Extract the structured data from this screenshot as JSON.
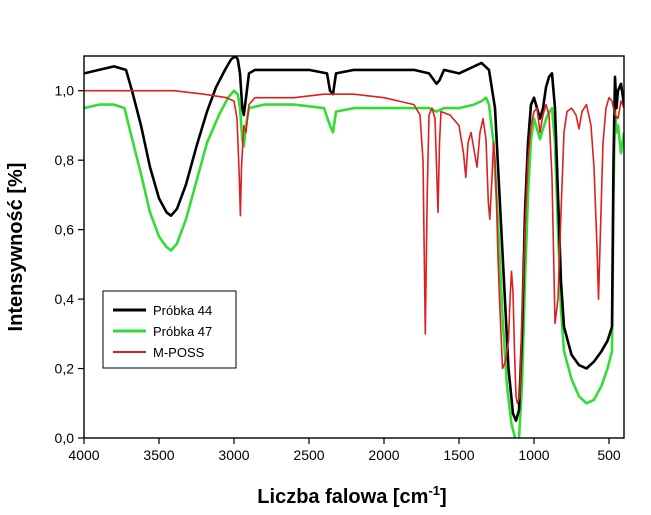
{
  "chart_data": {
    "type": "line",
    "xlabel_main": "Liczba falowa [cm",
    "xlabel_sup": "-1",
    "xlabel_end": "]",
    "ylabel": "Intensywność [%]",
    "xlim": [
      4000,
      400
    ],
    "ylim": [
      0.0,
      1.1
    ],
    "x_reversed": true,
    "x_ticks": [
      4000,
      3500,
      3000,
      2500,
      2000,
      1500,
      1000,
      500
    ],
    "x_tick_labels": [
      "4000",
      "3500",
      "3000",
      "2500",
      "2000",
      "1500",
      "1000",
      "500"
    ],
    "y_ticks": [
      0.0,
      0.2,
      0.4,
      0.6,
      0.8,
      1.0
    ],
    "y_tick_labels": [
      "0,0",
      "0,2",
      "0,4",
      "0,6",
      "0,8",
      "1,0"
    ],
    "grid": false,
    "legend_position": "lower-left",
    "series": [
      {
        "name": "Próbka 44",
        "color": "#000000",
        "points": [
          [
            4000,
            1.05
          ],
          [
            3900,
            1.06
          ],
          [
            3800,
            1.07
          ],
          [
            3720,
            1.06
          ],
          [
            3680,
            1.0
          ],
          [
            3620,
            0.9
          ],
          [
            3560,
            0.78
          ],
          [
            3500,
            0.69
          ],
          [
            3450,
            0.65
          ],
          [
            3420,
            0.64
          ],
          [
            3380,
            0.66
          ],
          [
            3320,
            0.73
          ],
          [
            3250,
            0.84
          ],
          [
            3180,
            0.94
          ],
          [
            3120,
            1.01
          ],
          [
            3060,
            1.06
          ],
          [
            3020,
            1.09
          ],
          [
            2990,
            1.1
          ],
          [
            2975,
            1.09
          ],
          [
            2960,
            1.05
          ],
          [
            2945,
            0.95
          ],
          [
            2935,
            0.93
          ],
          [
            2920,
            0.98
          ],
          [
            2900,
            1.05
          ],
          [
            2860,
            1.06
          ],
          [
            2700,
            1.06
          ],
          [
            2500,
            1.06
          ],
          [
            2380,
            1.05
          ],
          [
            2360,
            1.0
          ],
          [
            2340,
            0.99
          ],
          [
            2320,
            1.05
          ],
          [
            2200,
            1.06
          ],
          [
            2000,
            1.06
          ],
          [
            1800,
            1.06
          ],
          [
            1700,
            1.05
          ],
          [
            1650,
            1.02
          ],
          [
            1630,
            1.03
          ],
          [
            1600,
            1.06
          ],
          [
            1500,
            1.05
          ],
          [
            1450,
            1.06
          ],
          [
            1400,
            1.07
          ],
          [
            1350,
            1.08
          ],
          [
            1300,
            1.06
          ],
          [
            1260,
            0.95
          ],
          [
            1230,
            0.7
          ],
          [
            1200,
            0.45
          ],
          [
            1170,
            0.2
          ],
          [
            1140,
            0.07
          ],
          [
            1120,
            0.05
          ],
          [
            1100,
            0.08
          ],
          [
            1080,
            0.3
          ],
          [
            1060,
            0.65
          ],
          [
            1040,
            0.85
          ],
          [
            1020,
            0.96
          ],
          [
            1000,
            0.98
          ],
          [
            980,
            0.95
          ],
          [
            960,
            0.92
          ],
          [
            940,
            0.95
          ],
          [
            920,
            1.01
          ],
          [
            900,
            1.04
          ],
          [
            880,
            1.05
          ],
          [
            860,
            0.95
          ],
          [
            840,
            0.7
          ],
          [
            820,
            0.45
          ],
          [
            800,
            0.32
          ],
          [
            750,
            0.24
          ],
          [
            700,
            0.21
          ],
          [
            650,
            0.2
          ],
          [
            600,
            0.22
          ],
          [
            550,
            0.25
          ],
          [
            510,
            0.28
          ],
          [
            480,
            0.32
          ],
          [
            470,
            0.8
          ],
          [
            460,
            1.04
          ],
          [
            450,
            0.95
          ],
          [
            440,
            1.0
          ],
          [
            420,
            1.02
          ],
          [
            400,
            0.96
          ]
        ]
      },
      {
        "name": "Próbka 47",
        "color": "#33dd33",
        "points": [
          [
            4000,
            0.95
          ],
          [
            3900,
            0.96
          ],
          [
            3800,
            0.96
          ],
          [
            3730,
            0.95
          ],
          [
            3690,
            0.88
          ],
          [
            3620,
            0.76
          ],
          [
            3560,
            0.65
          ],
          [
            3500,
            0.58
          ],
          [
            3450,
            0.55
          ],
          [
            3420,
            0.54
          ],
          [
            3380,
            0.56
          ],
          [
            3320,
            0.63
          ],
          [
            3250,
            0.74
          ],
          [
            3180,
            0.85
          ],
          [
            3100,
            0.93
          ],
          [
            3040,
            0.98
          ],
          [
            3000,
            1.0
          ],
          [
            2975,
            0.99
          ],
          [
            2960,
            0.95
          ],
          [
            2945,
            0.86
          ],
          [
            2935,
            0.84
          ],
          [
            2920,
            0.9
          ],
          [
            2900,
            0.95
          ],
          [
            2800,
            0.96
          ],
          [
            2600,
            0.96
          ],
          [
            2400,
            0.95
          ],
          [
            2360,
            0.9
          ],
          [
            2340,
            0.88
          ],
          [
            2320,
            0.94
          ],
          [
            2200,
            0.95
          ],
          [
            2000,
            0.95
          ],
          [
            1800,
            0.95
          ],
          [
            1700,
            0.95
          ],
          [
            1650,
            0.94
          ],
          [
            1600,
            0.95
          ],
          [
            1500,
            0.95
          ],
          [
            1400,
            0.96
          ],
          [
            1350,
            0.97
          ],
          [
            1320,
            0.98
          ],
          [
            1300,
            0.96
          ],
          [
            1270,
            0.85
          ],
          [
            1240,
            0.62
          ],
          [
            1210,
            0.35
          ],
          [
            1180,
            0.15
          ],
          [
            1150,
            0.04
          ],
          [
            1120,
            -0.01
          ],
          [
            1100,
            0.0
          ],
          [
            1080,
            0.15
          ],
          [
            1060,
            0.45
          ],
          [
            1040,
            0.7
          ],
          [
            1020,
            0.86
          ],
          [
            1000,
            0.92
          ],
          [
            980,
            0.89
          ],
          [
            960,
            0.86
          ],
          [
            940,
            0.89
          ],
          [
            910,
            0.93
          ],
          [
            880,
            0.95
          ],
          [
            860,
            0.85
          ],
          [
            840,
            0.6
          ],
          [
            820,
            0.37
          ],
          [
            800,
            0.25
          ],
          [
            750,
            0.17
          ],
          [
            700,
            0.12
          ],
          [
            650,
            0.1
          ],
          [
            600,
            0.11
          ],
          [
            550,
            0.15
          ],
          [
            510,
            0.2
          ],
          [
            480,
            0.25
          ],
          [
            470,
            0.7
          ],
          [
            460,
            0.95
          ],
          [
            450,
            0.88
          ],
          [
            440,
            0.9
          ],
          [
            420,
            0.82
          ],
          [
            400,
            0.88
          ]
        ]
      },
      {
        "name": "M-POSS",
        "color": "#dd1f1f",
        "points": [
          [
            4000,
            1.0
          ],
          [
            3800,
            1.0
          ],
          [
            3600,
            1.0
          ],
          [
            3400,
            1.0
          ],
          [
            3200,
            0.99
          ],
          [
            3050,
            0.98
          ],
          [
            3000,
            0.97
          ],
          [
            2980,
            0.92
          ],
          [
            2965,
            0.75
          ],
          [
            2957,
            0.64
          ],
          [
            2950,
            0.78
          ],
          [
            2935,
            0.9
          ],
          [
            2920,
            0.88
          ],
          [
            2900,
            0.96
          ],
          [
            2860,
            0.98
          ],
          [
            2800,
            0.98
          ],
          [
            2600,
            0.98
          ],
          [
            2400,
            0.99
          ],
          [
            2200,
            0.99
          ],
          [
            2000,
            0.98
          ],
          [
            1900,
            0.97
          ],
          [
            1800,
            0.96
          ],
          [
            1760,
            0.93
          ],
          [
            1740,
            0.8
          ],
          [
            1725,
            0.3
          ],
          [
            1712,
            0.7
          ],
          [
            1700,
            0.93
          ],
          [
            1680,
            0.95
          ],
          [
            1660,
            0.92
          ],
          [
            1640,
            0.65
          ],
          [
            1630,
            0.85
          ],
          [
            1620,
            0.94
          ],
          [
            1560,
            0.93
          ],
          [
            1500,
            0.9
          ],
          [
            1470,
            0.82
          ],
          [
            1455,
            0.75
          ],
          [
            1440,
            0.85
          ],
          [
            1420,
            0.88
          ],
          [
            1400,
            0.83
          ],
          [
            1380,
            0.78
          ],
          [
            1360,
            0.88
          ],
          [
            1340,
            0.92
          ],
          [
            1320,
            0.86
          ],
          [
            1305,
            0.68
          ],
          [
            1295,
            0.63
          ],
          [
            1280,
            0.75
          ],
          [
            1270,
            0.85
          ],
          [
            1260,
            0.8
          ],
          [
            1250,
            0.68
          ],
          [
            1240,
            0.52
          ],
          [
            1230,
            0.4
          ],
          [
            1220,
            0.3
          ],
          [
            1210,
            0.2
          ],
          [
            1190,
            0.22
          ],
          [
            1170,
            0.28
          ],
          [
            1160,
            0.4
          ],
          [
            1150,
            0.48
          ],
          [
            1140,
            0.42
          ],
          [
            1130,
            0.25
          ],
          [
            1120,
            0.12
          ],
          [
            1110,
            0.1
          ],
          [
            1095,
            0.12
          ],
          [
            1080,
            0.35
          ],
          [
            1060,
            0.6
          ],
          [
            1040,
            0.8
          ],
          [
            1020,
            0.9
          ],
          [
            1000,
            0.94
          ],
          [
            980,
            0.95
          ],
          [
            960,
            0.88
          ],
          [
            940,
            0.93
          ],
          [
            920,
            0.96
          ],
          [
            900,
            0.93
          ],
          [
            880,
            0.75
          ],
          [
            860,
            0.33
          ],
          [
            840,
            0.4
          ],
          [
            820,
            0.65
          ],
          [
            800,
            0.88
          ],
          [
            780,
            0.94
          ],
          [
            750,
            0.95
          ],
          [
            720,
            0.93
          ],
          [
            700,
            0.89
          ],
          [
            680,
            0.94
          ],
          [
            650,
            0.96
          ],
          [
            620,
            0.9
          ],
          [
            600,
            0.78
          ],
          [
            580,
            0.55
          ],
          [
            570,
            0.4
          ],
          [
            560,
            0.55
          ],
          [
            540,
            0.85
          ],
          [
            520,
            0.95
          ],
          [
            500,
            0.98
          ],
          [
            480,
            0.97
          ],
          [
            460,
            0.93
          ],
          [
            440,
            0.92
          ],
          [
            420,
            0.97
          ],
          [
            400,
            0.95
          ]
        ]
      }
    ]
  }
}
